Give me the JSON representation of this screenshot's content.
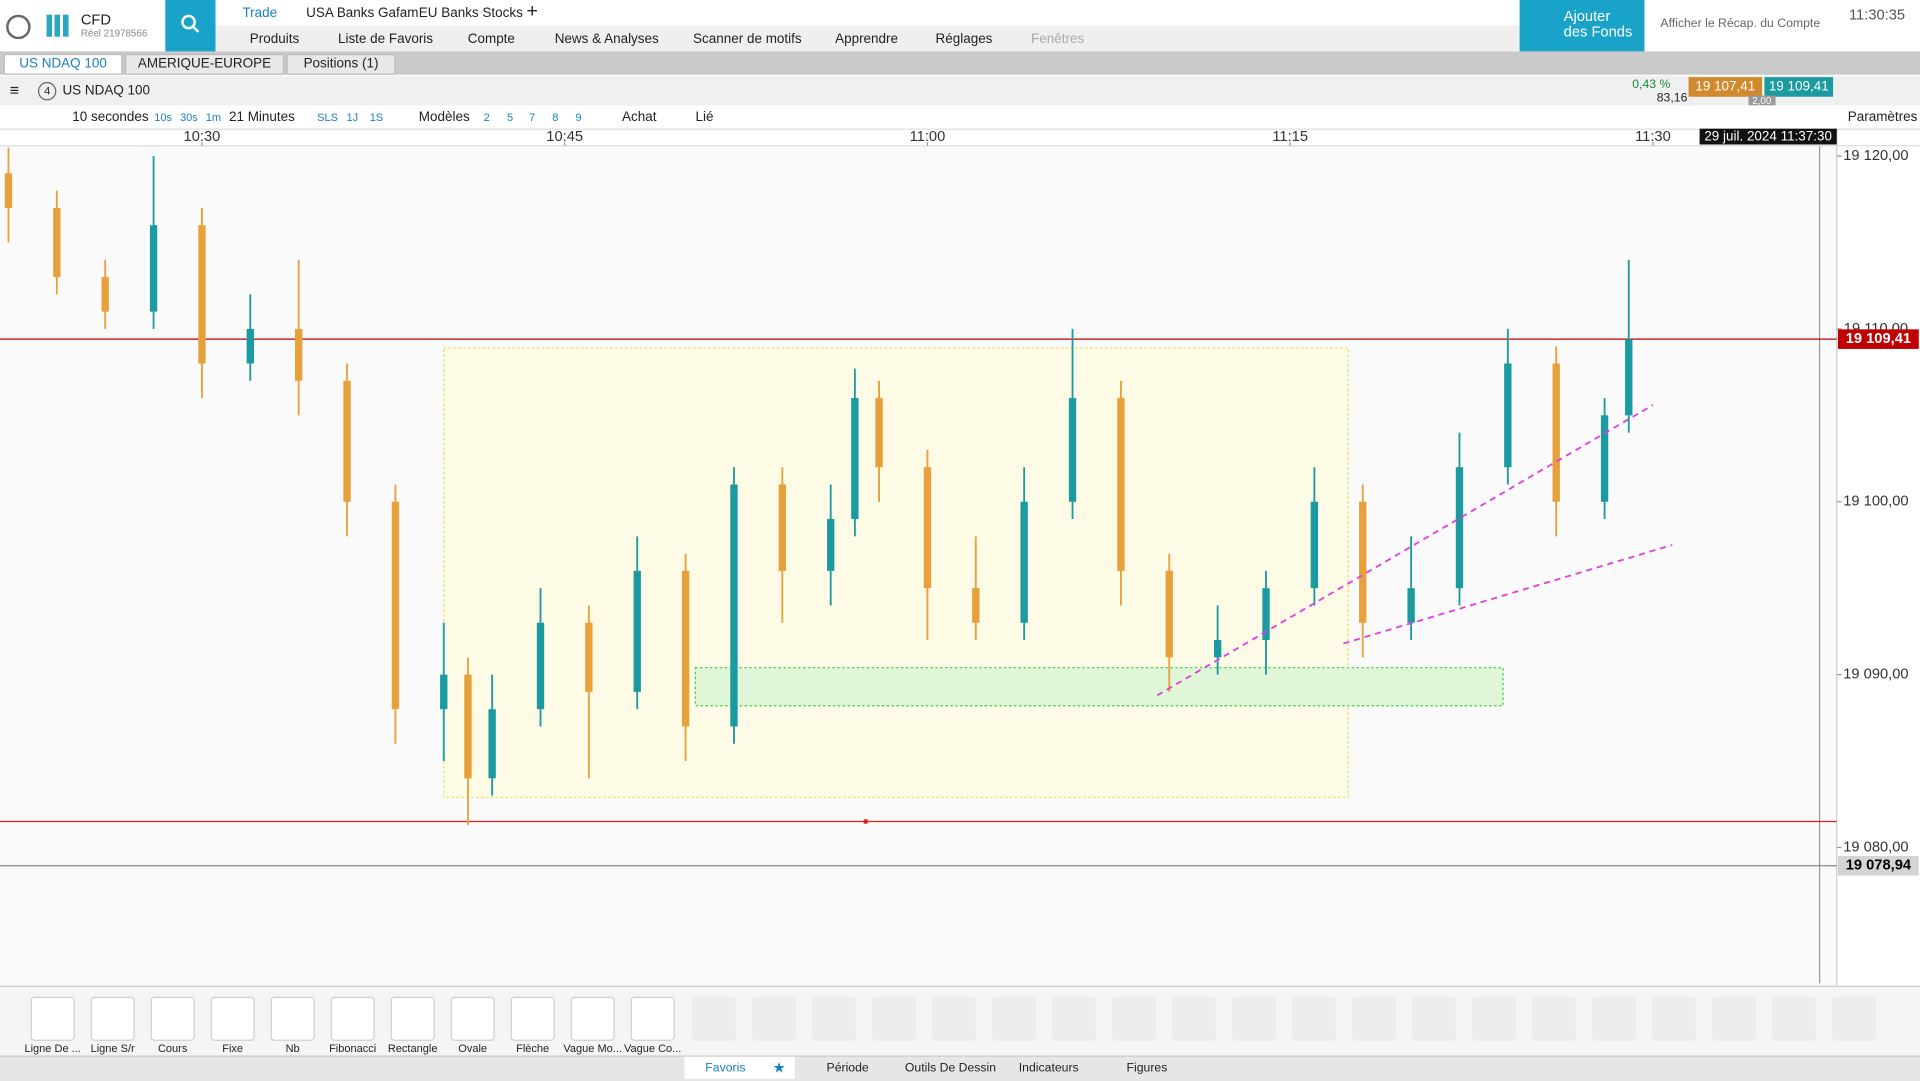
{
  "header": {
    "brand": "CFD",
    "account": "Réel 21978566",
    "tabs": [
      "Trade",
      "USA Banks Gafam",
      "EU Banks Stocks"
    ],
    "menu": [
      "Produits",
      "Liste de Favoris",
      "Compte",
      "News & Analyses",
      "Scanner de motifs",
      "Apprendre",
      "Réglages",
      "Fenêtres"
    ],
    "funds": "Ajouter des Fonds",
    "summary": "Afficher le Récap. du Compte",
    "clock": "11:30:35"
  },
  "workspaces": [
    "US NDAQ 100",
    "AMERIQUE-EUROPE",
    "Positions (1)"
  ],
  "instrument": {
    "index": "4",
    "name": "US NDAQ 100",
    "change_pct": "0,43 %",
    "change": "83,16",
    "bid": "19 107,41",
    "ask": "19 109,41",
    "spread": "2,00"
  },
  "toolbar": [
    "10 secondes",
    "10s",
    "30s",
    "1m",
    "21 Minutes",
    "SLS",
    "1J",
    "1S",
    "Modèles",
    "2",
    "5",
    "7",
    "8",
    "9",
    "Achat",
    "Lié",
    "Paramètres"
  ],
  "chart_data": {
    "type": "candlestick",
    "x": [
      22,
      24,
      26,
      28,
      30,
      32,
      34,
      36,
      38,
      40,
      41,
      42,
      44,
      46,
      48,
      50,
      52,
      54,
      56,
      57,
      58,
      60,
      62,
      64,
      66,
      68,
      70,
      72,
      74,
      76,
      78,
      80,
      82,
      84,
      86,
      88,
      89
    ],
    "open": [
      19119,
      19117,
      19113,
      19111,
      19116,
      19108,
      19110,
      19107,
      19100,
      19088,
      19090,
      19084,
      19088,
      19093,
      19089,
      19096,
      19087,
      19101,
      19096,
      19099,
      19106,
      19102,
      19095,
      19093,
      19100,
      19106,
      19096,
      19091,
      19092,
      19095,
      19100,
      19093,
      19095,
      19102,
      19108,
      19100,
      19105
    ],
    "high": [
      19120.5,
      19118,
      19114,
      19120,
      19117,
      19112,
      19114,
      19108,
      19101,
      19093,
      19091,
      19090,
      19095,
      19094,
      19098,
      19097,
      19102,
      19102,
      19101,
      19107.7,
      19107,
      19103,
      19098,
      19102,
      19110,
      19107,
      19097,
      19094,
      19096,
      19102,
      19101,
      19098,
      19104,
      19110,
      19109,
      19106,
      19114
    ],
    "low": [
      19115,
      19112,
      19110,
      19110,
      19106,
      19107,
      19105,
      19098,
      19086,
      19085,
      19081.3,
      19083,
      19087,
      19084,
      19088,
      19085,
      19086,
      19093,
      19094,
      19098,
      19100,
      19092,
      19092,
      19092,
      19099,
      19094,
      19089,
      19090,
      19090,
      19094,
      19091,
      19092,
      19094,
      19101,
      19098,
      19099,
      19104
    ],
    "close": [
      19117,
      19113,
      19111,
      19116,
      19108,
      19110,
      19107,
      19100,
      19088,
      19090,
      19084,
      19088,
      19093,
      19089,
      19096,
      19087,
      19101,
      19096,
      19099,
      19106,
      19102,
      19095,
      19093,
      19100,
      19106,
      19096,
      19091,
      19092,
      19095,
      19100,
      19093,
      19095,
      19102,
      19108,
      19100,
      19105,
      19109.4
    ],
    "up_color": "#1b9aa0",
    "down_color": "#e8a13a",
    "xlim": [
      21.65,
      97.6
    ],
    "ylim": [
      19072,
      19120.6
    ],
    "xticks": [
      {
        "value": 30,
        "label": "10:30"
      },
      {
        "value": 45,
        "label": "10:45"
      },
      {
        "value": 60,
        "label": "11:00"
      },
      {
        "value": 75,
        "label": "11:15"
      },
      {
        "value": 90,
        "label": "11:30"
      }
    ],
    "yticks": [
      {
        "value": 19120,
        "label": "19 120,00"
      },
      {
        "value": 19110,
        "label": "19 110,00"
      },
      {
        "value": 19100,
        "label": "19 100,00"
      },
      {
        "value": 19090,
        "label": "19 090,00"
      },
      {
        "value": 19080,
        "label": "19 080,00"
      }
    ],
    "date_label": "29 juil. 2024 11:37:30",
    "price_labels": [
      {
        "value": 19109.41,
        "label": "19 109,41",
        "color": "#c00000"
      },
      {
        "value": 19078.94,
        "label": "19 078,94",
        "color": "#d4d4d4"
      }
    ],
    "hlines": [
      {
        "value": 19081.5,
        "color": "#e02020"
      }
    ],
    "rects": [
      {
        "x": [
          40,
          77.4
        ],
        "y": [
          19082.9,
          19108.9
        ],
        "color": "#e6e14a",
        "fill": "#fdfbe6"
      },
      {
        "x": [
          50.4,
          83.8
        ],
        "y": [
          19088.2,
          19090.4
        ],
        "color": "#3ccf3c",
        "fill": "#dff7d8"
      }
    ],
    "trendlines": [
      {
        "x": [
          69.5,
          90
        ],
        "y": [
          19088.8,
          19105.6
        ],
        "color": "#e040e0"
      },
      {
        "x": [
          77.2,
          90.8
        ],
        "y": [
          19091.8,
          19097.5
        ],
        "color": "#e040e0"
      }
    ]
  },
  "tools": [
    "Ligne De ...",
    "Ligne S/r",
    "Cours",
    "Fixe",
    "Nb",
    "Fibonacci",
    "Rectangle",
    "Ovale",
    "Flèche",
    "Vague Mo...",
    "Vague Co..."
  ],
  "bottom_tabs": [
    "Favoris",
    "Période",
    "Outils De Dessin",
    "Indicateurs",
    "Figures"
  ]
}
